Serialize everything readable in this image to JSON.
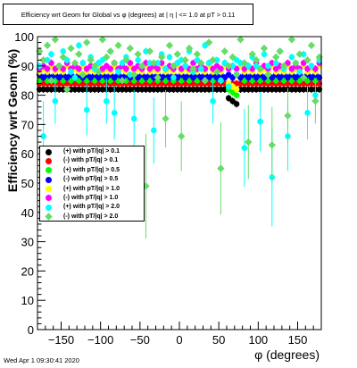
{
  "chart_data": {
    "type": "scatter",
    "title": "Efficiency wrt Geom for Global vs φ (degrees) at | η | <= 1.0 at pT > 0.11",
    "xlabel": "φ (degrees)",
    "ylabel": "Efficiency wrt Geom (%)",
    "xlim": [
      -180,
      180
    ],
    "ylim": [
      0,
      100
    ],
    "xticks": [
      -150,
      -100,
      -50,
      0,
      50,
      100,
      150
    ],
    "yticks": [
      0,
      10,
      20,
      30,
      40,
      50,
      60,
      70,
      80,
      90,
      100
    ],
    "grid": false,
    "legend_position": "left-middle",
    "n_bins": 72,
    "series": [
      {
        "name": "(+) with pT/|q| > 0.1",
        "color": "#000000",
        "marker": "circle",
        "values": [
          82,
          82,
          82,
          82,
          82,
          82,
          82,
          82,
          82,
          82,
          82,
          82,
          82,
          82,
          82,
          82,
          82,
          82,
          82,
          82,
          82,
          82,
          82,
          82,
          82,
          82,
          82,
          82,
          82,
          82,
          82,
          82,
          82,
          82,
          82,
          82,
          82,
          82,
          82,
          82,
          82,
          82,
          82,
          82,
          82,
          82,
          82,
          82,
          79,
          78,
          77,
          82,
          82,
          82,
          82,
          82,
          82,
          82,
          82,
          82,
          82,
          82,
          82,
          82,
          82,
          82,
          82,
          82,
          82,
          82,
          82,
          82
        ]
      },
      {
        "name": "(-) with pT/|q| > 0.1",
        "color": "#ff0000",
        "marker": "circle",
        "values": [
          84,
          84,
          84,
          84,
          84,
          84,
          84,
          84,
          84,
          84,
          84,
          84,
          84,
          84,
          84,
          84,
          84,
          84,
          84,
          84,
          84,
          84,
          84,
          84,
          84,
          84,
          84,
          84,
          84,
          84,
          84,
          84,
          84,
          84,
          84,
          84,
          84,
          84,
          84,
          84,
          84,
          84,
          84,
          84,
          84,
          84,
          84,
          84,
          84,
          84,
          84,
          84,
          84,
          84,
          84,
          84,
          84,
          84,
          84,
          84,
          84,
          84,
          84,
          84,
          84,
          84,
          84,
          84,
          84,
          84,
          84,
          84
        ]
      },
      {
        "name": "(+) with pT/|q| > 0.5",
        "color": "#00ff00",
        "marker": "circle",
        "values": [
          85,
          86,
          85,
          86,
          85,
          86,
          85,
          86,
          85,
          86,
          85,
          86,
          85,
          86,
          85,
          86,
          85,
          86,
          85,
          86,
          85,
          86,
          85,
          86,
          85,
          86,
          85,
          86,
          85,
          86,
          85,
          86,
          85,
          86,
          85,
          86,
          85,
          86,
          85,
          86,
          85,
          86,
          85,
          86,
          85,
          86,
          85,
          86,
          82,
          81,
          80,
          86,
          85,
          86,
          85,
          86,
          85,
          86,
          85,
          86,
          85,
          86,
          85,
          86,
          85,
          86,
          85,
          86,
          85,
          86,
          85,
          86
        ]
      },
      {
        "name": "(-) with pT/|q| > 0.5",
        "color": "#0000ff",
        "marker": "circle",
        "values": [
          87,
          86,
          87,
          86,
          87,
          86,
          87,
          86,
          87,
          86,
          87,
          86,
          87,
          86,
          87,
          86,
          87,
          86,
          87,
          86,
          87,
          86,
          87,
          86,
          87,
          86,
          87,
          86,
          87,
          86,
          87,
          86,
          87,
          86,
          87,
          86,
          87,
          86,
          87,
          86,
          87,
          86,
          87,
          86,
          87,
          86,
          87,
          86,
          87,
          86,
          87,
          86,
          87,
          86,
          87,
          86,
          87,
          86,
          87,
          86,
          87,
          86,
          87,
          86,
          87,
          86,
          87,
          86,
          87,
          86,
          87,
          86
        ]
      },
      {
        "name": "(+) with pT/|q| > 1.0",
        "color": "#ffff00",
        "marker": "circle",
        "values": [
          88,
          89,
          88,
          90,
          88,
          89,
          88,
          90,
          88,
          89,
          88,
          90,
          88,
          89,
          88,
          90,
          88,
          89,
          88,
          90,
          88,
          89,
          88,
          90,
          88,
          89,
          88,
          90,
          88,
          89,
          88,
          90,
          88,
          89,
          88,
          90,
          88,
          89,
          88,
          90,
          88,
          89,
          88,
          90,
          88,
          89,
          88,
          90,
          84,
          83,
          82,
          90,
          88,
          89,
          88,
          90,
          88,
          89,
          88,
          90,
          88,
          89,
          88,
          90,
          88,
          89,
          88,
          90,
          88,
          89,
          88,
          90
        ]
      },
      {
        "name": "(-) with pT/|q| > 1.0",
        "color": "#ff00ff",
        "marker": "circle",
        "values": [
          89,
          90,
          89,
          91,
          89,
          90,
          89,
          91,
          89,
          90,
          89,
          91,
          89,
          90,
          89,
          91,
          89,
          90,
          89,
          91,
          89,
          90,
          89,
          91,
          89,
          90,
          89,
          91,
          89,
          90,
          89,
          91,
          89,
          90,
          89,
          91,
          89,
          90,
          89,
          91,
          89,
          90,
          89,
          91,
          89,
          90,
          89,
          91,
          89,
          90,
          89,
          91,
          89,
          90,
          89,
          91,
          89,
          90,
          89,
          91,
          89,
          90,
          89,
          91,
          89,
          90,
          89,
          91,
          89,
          90,
          89,
          91
        ]
      },
      {
        "name": "(+) with pT/|q| > 2.0",
        "color": "#00ffff",
        "marker": "circle",
        "values": [
          90,
          66,
          92,
          94,
          78,
          90,
          95,
          92,
          88,
          86,
          97,
          91,
          75,
          93,
          89,
          91,
          92,
          78,
          95,
          74,
          88,
          91,
          93,
          87,
          72,
          92,
          90,
          95,
          91,
          68,
          91,
          94,
          89,
          93,
          86,
          91,
          92,
          90,
          95,
          88,
          92,
          89,
          97,
          91,
          78,
          92,
          85,
          91,
          83,
          90,
          92,
          91,
          62,
          90,
          93,
          90,
          71,
          94,
          90,
          52,
          91,
          95,
          89,
          66,
          93,
          91,
          88,
          94,
          74,
          90,
          80,
          92
        ]
      },
      {
        "name": "(-) with pT/|q| > 2.0",
        "color": "#66dd66",
        "marker": "diamond",
        "values": [
          95,
          92,
          97,
          85,
          99,
          90,
          93,
          82,
          96,
          91,
          94,
          87,
          98,
          92,
          90,
          88,
          99,
          93,
          95,
          91,
          97,
          85,
          92,
          96,
          87,
          94,
          90,
          49,
          95,
          91,
          86,
          93,
          72,
          97,
          90,
          94,
          66,
          92,
          96,
          89,
          94,
          91,
          85,
          98,
          92,
          88,
          55,
          95,
          90,
          93,
          87,
          99,
          91,
          64,
          94,
          92,
          89,
          96,
          87,
          63,
          93,
          95,
          90,
          73,
          99,
          91,
          94,
          86,
          92,
          97,
          78,
          93
        ]
      }
    ]
  },
  "footer": "Wed Apr  1 09:30:41 2020"
}
